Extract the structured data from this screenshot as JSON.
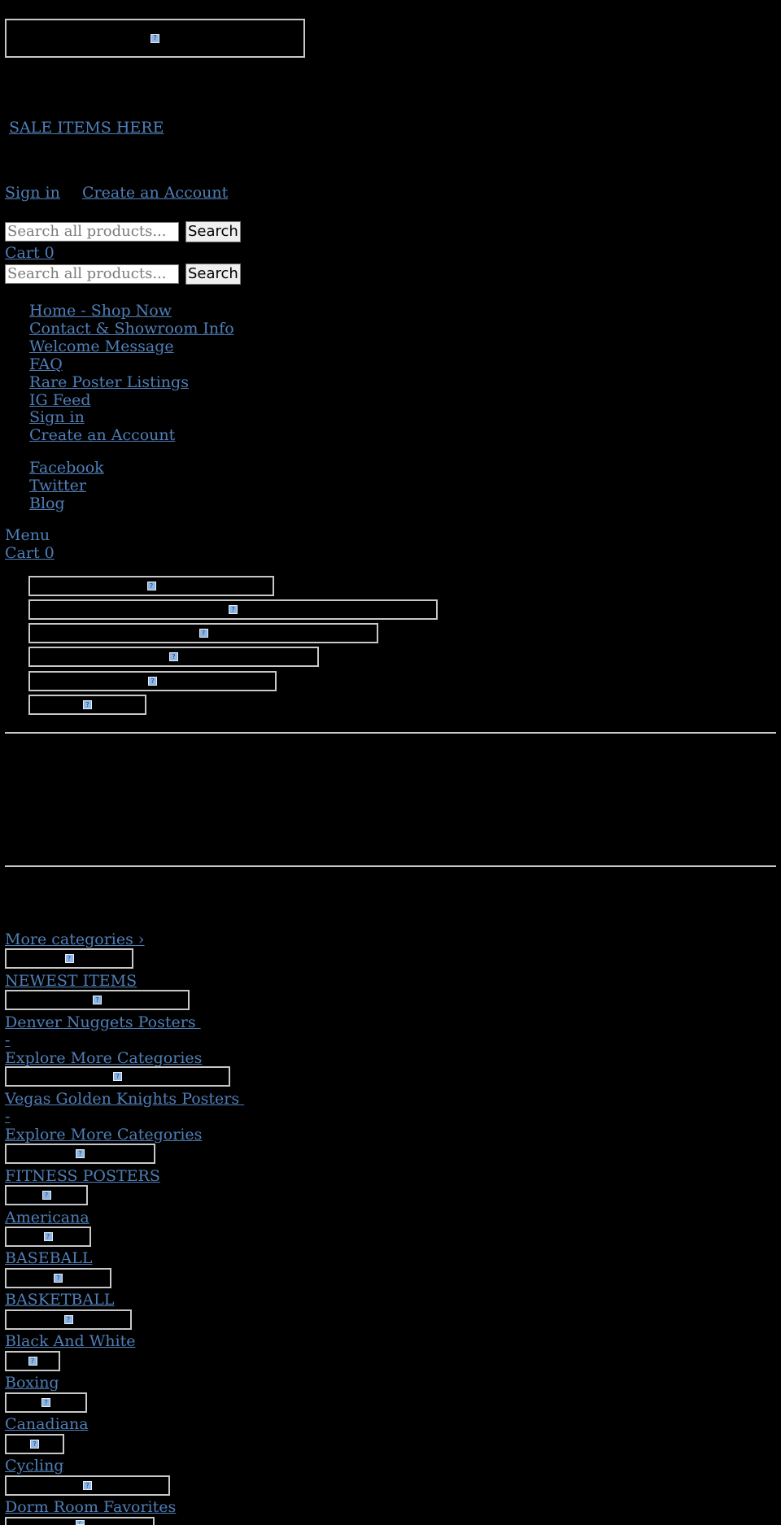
{
  "header": {
    "sale_link": "SALE ITEMS HERE",
    "sign_in": "Sign in",
    "create_account": "Create an Account",
    "search_placeholder": "Search all products...",
    "search_button": "Search",
    "cart_label": "Cart 0"
  },
  "nav": {
    "items": [
      "Home - Shop Now",
      "Contact & Showroom Info",
      "Welcome Message",
      "FAQ",
      "Rare Poster Listings",
      "IG Feed",
      "Sign in",
      "Create an Account"
    ],
    "social": [
      "Facebook",
      "Twitter",
      "Blog"
    ],
    "menu_label": "Menu",
    "cart_label": "Cart 0"
  },
  "categories": {
    "more_link": "More categories ›",
    "items": [
      {
        "label": "NEWEST ITEMS",
        "sub": []
      },
      {
        "label": "Denver Nuggets Posters ",
        "sub": [
          "-",
          "Explore More Categories"
        ]
      },
      {
        "label": "Vegas Golden Knights Posters ",
        "sub": [
          "-",
          "Explore More Categories"
        ]
      },
      {
        "label": "FITNESS POSTERS",
        "sub": []
      },
      {
        "label": "Americana",
        "sub": []
      },
      {
        "label": "BASEBALL",
        "sub": []
      },
      {
        "label": "BASKETBALL",
        "sub": []
      },
      {
        "label": "Black And White",
        "sub": []
      },
      {
        "label": "Boxing",
        "sub": []
      },
      {
        "label": "Canadiana",
        "sub": []
      },
      {
        "label": "Cycling",
        "sub": []
      },
      {
        "label": "Dorm Room Favorites",
        "sub": []
      }
    ]
  },
  "icons": {
    "broken_image": "broken-image-icon"
  }
}
